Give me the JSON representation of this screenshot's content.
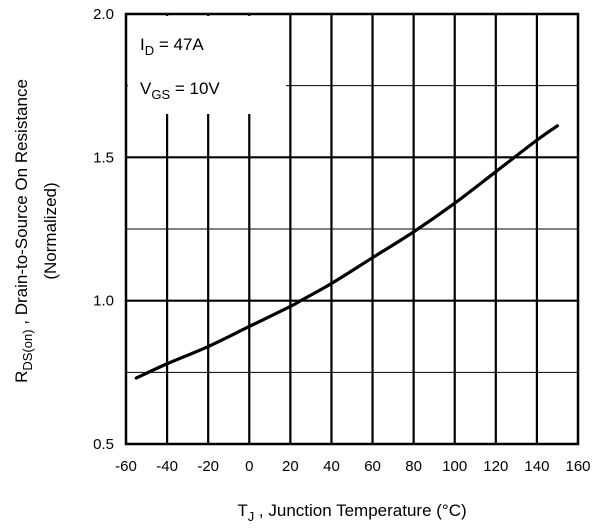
{
  "chart_data": {
    "type": "line",
    "title": "",
    "xlabel_main": "T",
    "xlabel_sub": "J",
    "xlabel_rest": " , Junction Temperature (°C)",
    "ylabel_main": "R",
    "ylabel_sub": "DS(on)",
    "ylabel_rest": " , Drain-to-Source On Resistance",
    "ylabel_line2": "(Normalized)",
    "xlim": [
      -60,
      160
    ],
    "ylim": [
      0.5,
      2.0
    ],
    "x_ticks": [
      -60,
      -40,
      -20,
      0,
      20,
      40,
      60,
      80,
      100,
      120,
      140,
      160
    ],
    "x_tick_labels": [
      "-60",
      "-40",
      "-20",
      "0",
      "20",
      "40",
      "60",
      "80",
      "100",
      "120",
      "140",
      "160"
    ],
    "y_ticks": [
      0.5,
      1.0,
      1.5,
      2.0
    ],
    "y_tick_labels": [
      "0.5",
      "1.0",
      "1.5",
      "2.0"
    ],
    "y_minor_gridlines": [
      0.75,
      1.25,
      1.75
    ],
    "grid": true,
    "annotation": {
      "line1_main": "I",
      "line1_sub": "D",
      "line1_rest": " = 47A",
      "line2_main": "V",
      "line2_sub": "GS",
      "line2_rest": " = 10V"
    },
    "series": [
      {
        "x": [
          -55,
          -40,
          -20,
          0,
          20,
          25,
          40,
          60,
          80,
          100,
          120,
          140,
          150
        ],
        "y": [
          0.73,
          0.78,
          0.84,
          0.91,
          0.98,
          1.0,
          1.06,
          1.15,
          1.24,
          1.34,
          1.45,
          1.56,
          1.61
        ]
      }
    ],
    "colors": {
      "line": "#000000",
      "grid": "#000000",
      "background": "#ffffff"
    }
  }
}
